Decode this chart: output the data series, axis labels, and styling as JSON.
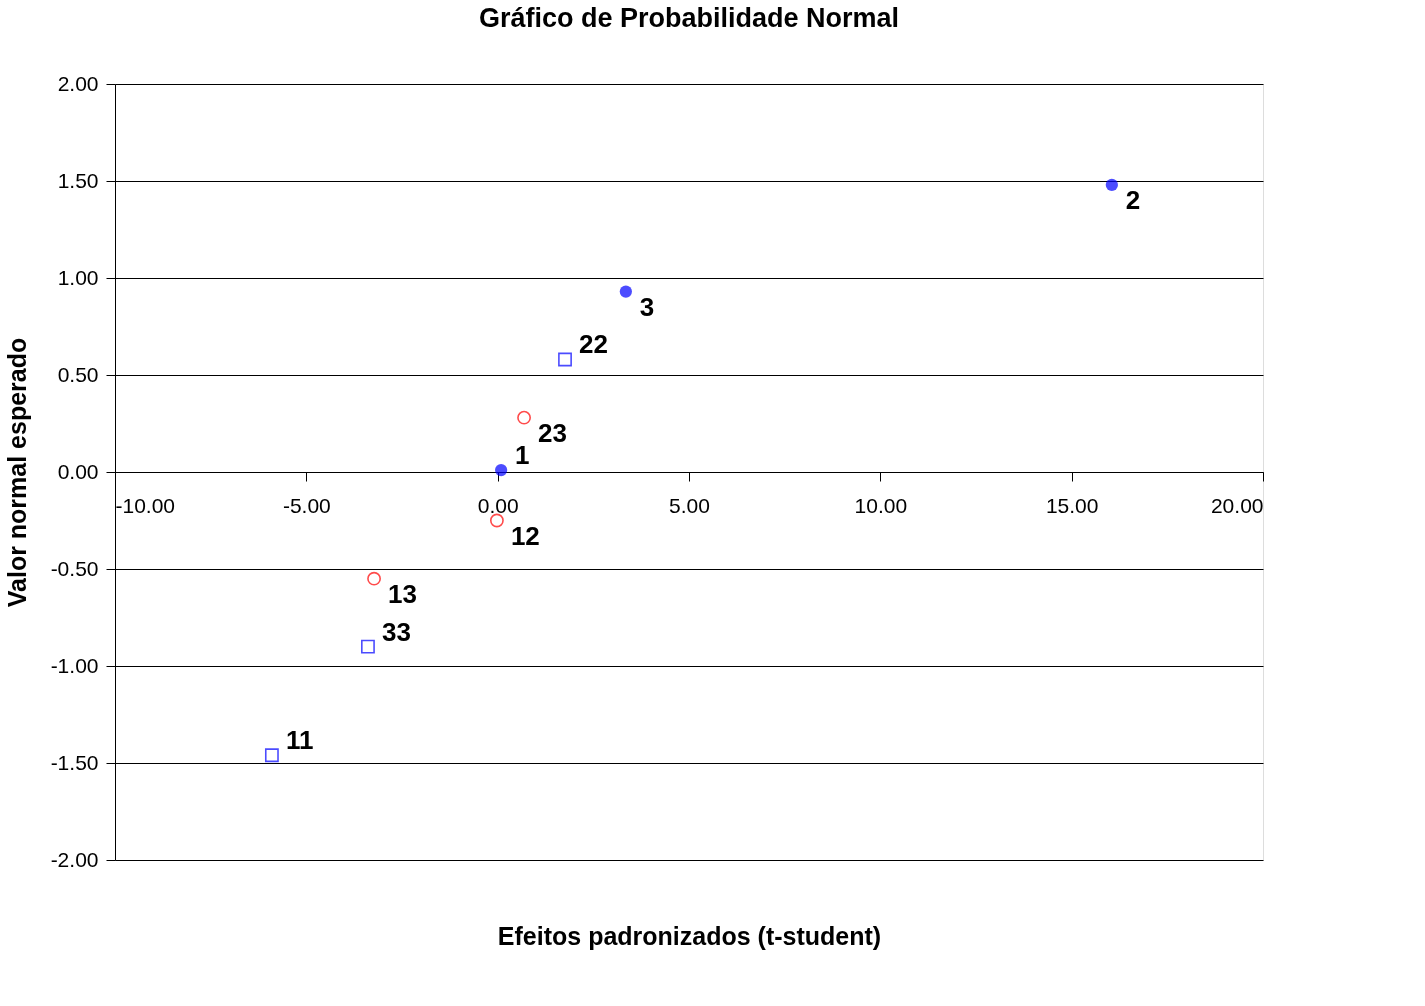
{
  "chart_data": {
    "type": "scatter",
    "title": "Gráfico de Probabilidade Normal",
    "xlabel": "Efeitos padronizados (t-student)",
    "ylabel": "Valor normal esperado",
    "xlim": [
      -10,
      20
    ],
    "xticks": [
      {
        "value": -10,
        "label": "-10.00"
      },
      {
        "value": -5,
        "label": "-5.00"
      },
      {
        "value": 0,
        "label": "0.00"
      },
      {
        "value": 5,
        "label": "5.00"
      },
      {
        "value": 10,
        "label": "10.00"
      },
      {
        "value": 15,
        "label": "15.00"
      },
      {
        "value": 20,
        "label": "20.00"
      }
    ],
    "ylim": [
      -2,
      2
    ],
    "yticks": [
      {
        "value": -2,
        "label": "-2.00"
      },
      {
        "value": -1.5,
        "label": "-1.50"
      },
      {
        "value": -1,
        "label": "-1.00"
      },
      {
        "value": -0.5,
        "label": "-0.50"
      },
      {
        "value": 0,
        "label": "0.00"
      },
      {
        "value": 0.5,
        "label": "0.50"
      },
      {
        "value": 1,
        "label": "1.00"
      },
      {
        "value": 1.5,
        "label": "1.50"
      },
      {
        "value": 2,
        "label": "2.00"
      }
    ],
    "grid": "y",
    "series": [
      {
        "color": "#0000ff",
        "marker": "circle",
        "x": [
          0.09,
          16.05,
          3.35
        ],
        "values": [
          0.01,
          1.48,
          0.93
        ]
      },
      {
        "color": "#ff0000",
        "marker": "circle",
        "x": [
          -0.02,
          -3.23,
          0.69
        ],
        "values": [
          -0.25,
          -0.55,
          0.28
        ]
      },
      {
        "color": "#0000ff",
        "marker": "square",
        "x": [
          -5.9,
          1.76,
          -3.39
        ],
        "values": [
          -1.46,
          0.58,
          -0.9
        ]
      }
    ],
    "annotations": [
      {
        "text": "1",
        "x": 0.09,
        "y": 0.01
      },
      {
        "text": "2",
        "x": 16.05,
        "y": 1.48
      },
      {
        "text": "3",
        "x": 3.35,
        "y": 0.93
      },
      {
        "text": "12",
        "x": -0.02,
        "y": -0.25
      },
      {
        "text": "13",
        "x": -3.23,
        "y": -0.55
      },
      {
        "text": "23",
        "x": 0.69,
        "y": 0.28
      },
      {
        "text": "11",
        "x": -5.9,
        "y": -1.46
      },
      {
        "text": "22",
        "x": 1.76,
        "y": 0.58
      },
      {
        "text": "33",
        "x": -3.39,
        "y": -0.9
      }
    ]
  }
}
